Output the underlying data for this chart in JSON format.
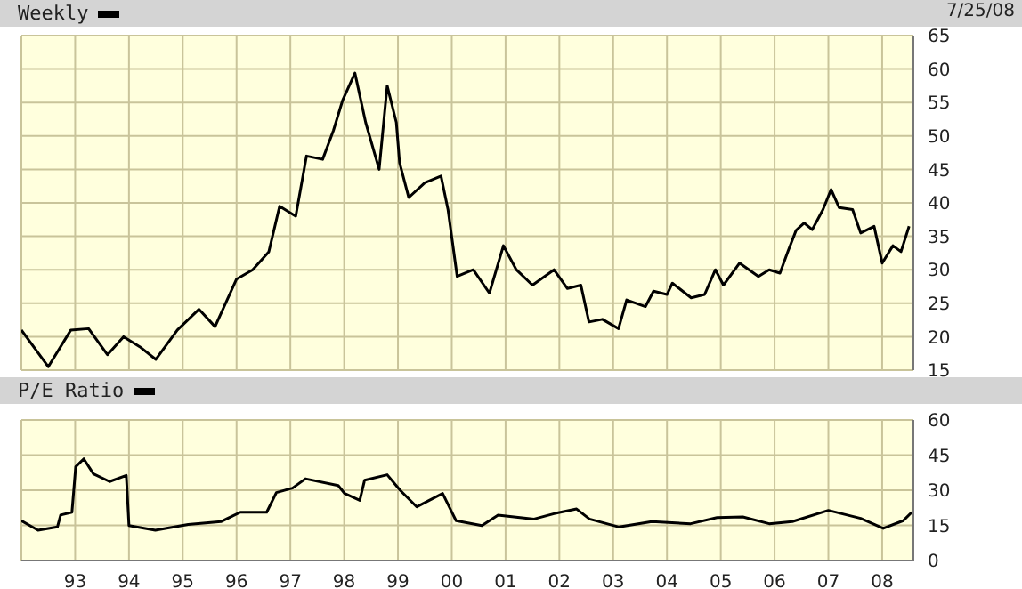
{
  "chart_data": [
    {
      "type": "line",
      "legend": "top left",
      "grid": true,
      "tick_labels": "y",
      "marker": "none",
      "line_style": "solid",
      "annotations": [
        "7/25/08"
      ],
      "xlim": [
        1992,
        2008.58
      ],
      "xticks": [
        1993,
        1994,
        1995,
        1996,
        1997,
        1998,
        1999,
        2000,
        2001,
        2002,
        2003,
        2004,
        2005,
        2006,
        2007,
        2008
      ],
      "ylim": [
        15,
        65
      ],
      "yticks": [
        15,
        20,
        25,
        30,
        35,
        40,
        45,
        50,
        55,
        60,
        65
      ],
      "series": [
        {
          "name": "Weekly",
          "color": "#000000",
          "x": [
            1992.0,
            1992.5,
            1992.92,
            1993.25,
            1993.6,
            1993.9,
            1994.2,
            1994.5,
            1994.9,
            1995.3,
            1995.6,
            1996.0,
            1996.3,
            1996.6,
            1996.8,
            1997.1,
            1997.3,
            1997.6,
            1997.8,
            1997.97,
            1998.2,
            1998.4,
            1998.65,
            1998.8,
            1998.97,
            1999.03,
            1999.2,
            1999.5,
            1999.8,
            1999.93,
            2000.1,
            2000.4,
            2000.7,
            2000.96,
            2001.2,
            2001.5,
            2001.9,
            2002.15,
            2002.4,
            2002.55,
            2002.8,
            2003.1,
            2003.25,
            2003.6,
            2003.75,
            2004.0,
            2004.1,
            2004.45,
            2004.7,
            2004.9,
            2005.05,
            2005.35,
            2005.7,
            2005.9,
            2006.1,
            2006.25,
            2006.4,
            2006.55,
            2006.7,
            2006.9,
            2007.05,
            2007.2,
            2007.45,
            2007.6,
            2007.85,
            2008.0,
            2008.2,
            2008.35,
            2008.5
          ],
          "values": [
            21,
            15.5,
            21,
            21.2,
            17.3,
            20,
            18.5,
            16.6,
            21,
            24.1,
            21.5,
            28.6,
            30,
            32.7,
            39.5,
            38,
            47,
            46.5,
            50.8,
            55.3,
            59.4,
            52,
            45,
            57.5,
            52,
            46,
            40.8,
            43,
            44,
            39,
            29,
            30,
            26.5,
            33.6,
            30,
            27.7,
            30,
            27.2,
            27.7,
            22.2,
            22.6,
            21.2,
            25.5,
            24.5,
            26.8,
            26.3,
            28,
            25.8,
            26.3,
            30,
            27.7,
            31,
            29,
            30,
            29.5,
            32.8,
            35.9,
            37,
            36,
            39,
            42,
            39.3,
            39,
            35.5,
            36.5,
            31,
            33.6,
            32.7,
            36.5
          ]
        }
      ]
    },
    {
      "type": "line",
      "legend": "top left",
      "grid": true,
      "tick_labels": true,
      "marker": "none",
      "line_style": "solid",
      "xlim": [
        1992,
        2008.58
      ],
      "xticks": [
        {
          "value": 1993,
          "label": "93"
        },
        {
          "value": 1994,
          "label": "94"
        },
        {
          "value": 1995,
          "label": "95"
        },
        {
          "value": 1996,
          "label": "96"
        },
        {
          "value": 1997,
          "label": "97"
        },
        {
          "value": 1998,
          "label": "98"
        },
        {
          "value": 1999,
          "label": "99"
        },
        {
          "value": 2000,
          "label": "00"
        },
        {
          "value": 2001,
          "label": "01"
        },
        {
          "value": 2002,
          "label": "02"
        },
        {
          "value": 2003,
          "label": "03"
        },
        {
          "value": 2004,
          "label": "04"
        },
        {
          "value": 2005,
          "label": "05"
        },
        {
          "value": 2006,
          "label": "06"
        },
        {
          "value": 2007,
          "label": "07"
        },
        {
          "value": 2008,
          "label": "08"
        }
      ],
      "ylim": [
        0,
        60
      ],
      "yticks": [
        0,
        15,
        30,
        45,
        60
      ],
      "series": [
        {
          "name": "P/E Ratio",
          "color": "#000000",
          "x": [
            1992.0,
            1992.31,
            1992.67,
            1992.73,
            1992.94,
            1993.01,
            1993.16,
            1993.34,
            1993.64,
            1993.95,
            1994.0,
            1994.49,
            1995.1,
            1995.71,
            1996.07,
            1996.56,
            1996.74,
            1997.04,
            1997.28,
            1997.89,
            1998.01,
            1998.29,
            1998.38,
            1998.8,
            1999.04,
            1999.35,
            1999.83,
            2000.08,
            2000.56,
            2000.86,
            2001.53,
            2001.9,
            2002.32,
            2002.56,
            2003.11,
            2003.72,
            2004.44,
            2004.93,
            2005.41,
            2005.9,
            2006.33,
            2007.0,
            2007.6,
            2008.02,
            2008.39,
            2008.55
          ],
          "values": [
            17,
            12.9,
            14.3,
            19.4,
            20.6,
            40,
            43.4,
            37,
            33.7,
            36.3,
            14.9,
            12.9,
            15.4,
            16.6,
            20.6,
            20.6,
            29,
            30.9,
            34.9,
            32,
            28.6,
            25.7,
            34.3,
            36.6,
            30,
            22.9,
            28.6,
            17,
            14.9,
            19.4,
            17.7,
            20,
            22,
            17.7,
            14.3,
            16.6,
            15.7,
            18.3,
            18.6,
            15.7,
            16.6,
            21.4,
            18,
            13.7,
            17,
            20.6
          ]
        }
      ]
    }
  ]
}
